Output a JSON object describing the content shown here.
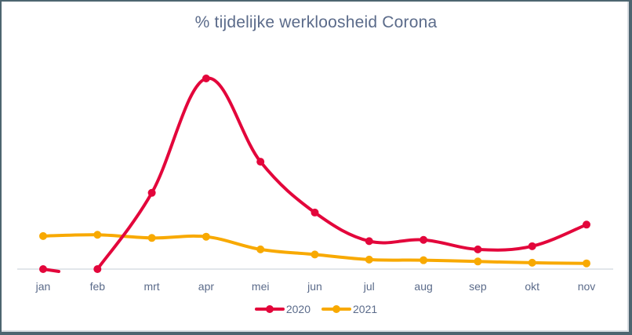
{
  "chart_data": {
    "type": "line",
    "title": "% tijdelijke werkloosheid Corona",
    "xlabel": "",
    "ylabel": "",
    "categories": [
      "jan",
      "feb",
      "mrt",
      "apr",
      "mei",
      "jun",
      "jul",
      "aug",
      "sep",
      "okt",
      "nov"
    ],
    "series": [
      {
        "name": "2020",
        "color": "#e3063b",
        "smooth": true,
        "values": [
          0.0,
          0.0,
          12.0,
          30.0,
          16.9,
          8.9,
          4.4,
          4.6,
          3.1,
          3.6,
          7.0
        ]
      },
      {
        "name": "2021",
        "color": "#f8a900",
        "smooth": false,
        "values": [
          5.2,
          5.4,
          4.9,
          5.1,
          3.1,
          2.3,
          1.5,
          1.4,
          1.2,
          1.0,
          0.9
        ]
      }
    ],
    "ylim": [
      0,
      30
    ],
    "y_axis_visible": false,
    "grid": false,
    "baseline": true,
    "legend_position": "bottom"
  },
  "title": "% tijdelijke werkloosheid Corona",
  "legend": [
    {
      "label": "2020",
      "color": "#e3063b"
    },
    {
      "label": "2021",
      "color": "#f8a900"
    }
  ]
}
